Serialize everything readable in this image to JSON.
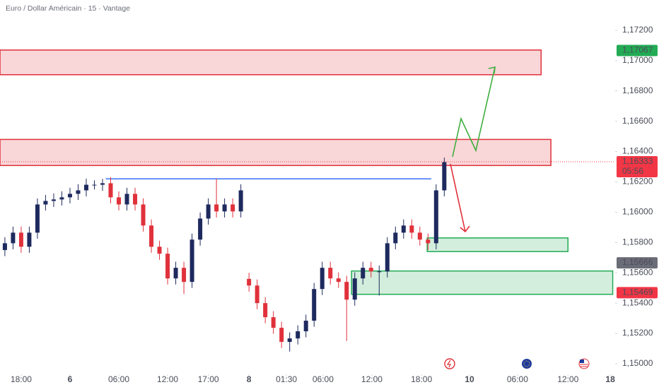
{
  "chart_data": {
    "type": "candlestick",
    "title": "Euro / Dollar Américain · 15 · Vantage",
    "xlim": [
      -2.6,
      73
    ],
    "ylim": [
      1.1493,
      1.174
    ],
    "xticks": [
      {
        "value": 0,
        "label": "18:00"
      },
      {
        "value": 6,
        "label": "6"
      },
      {
        "value": 12,
        "label": "06:00"
      },
      {
        "value": 18,
        "label": "12:00"
      },
      {
        "value": 23,
        "label": "17:00"
      },
      {
        "value": 28,
        "label": "8"
      },
      {
        "value": 32.6,
        "label": "01:30"
      },
      {
        "value": 37.1,
        "label": "06:00"
      },
      {
        "value": 43.1,
        "label": "12:00"
      },
      {
        "value": 49.2,
        "label": "18:00"
      },
      {
        "value": 55.1,
        "label": "10"
      },
      {
        "value": 61,
        "label": "06:00"
      },
      {
        "value": 67.2,
        "label": "12:00"
      },
      {
        "value": 72.4,
        "label": "18"
      }
    ],
    "yticks": [
      {
        "value": 1.172,
        "label": "1,17200"
      },
      {
        "value": 1.17,
        "label": "1,17000"
      },
      {
        "value": 1.168,
        "label": "1,16800"
      },
      {
        "value": 1.166,
        "label": "1,16600"
      },
      {
        "value": 1.164,
        "label": "1,16400"
      },
      {
        "value": 1.162,
        "label": "1,16200"
      },
      {
        "value": 1.16,
        "label": "1,16000"
      },
      {
        "value": 1.158,
        "label": "1,15800"
      },
      {
        "value": 1.156,
        "label": "1,15600"
      },
      {
        "value": 1.154,
        "label": "1,15400"
      },
      {
        "value": 1.152,
        "label": "1,15200"
      },
      {
        "value": 1.15,
        "label": "1,15000"
      }
    ],
    "grid": false,
    "up_color": "#1e2a5e",
    "down_color": "#e0313b",
    "x": [
      -2,
      -1,
      0,
      1,
      2,
      3,
      4,
      5,
      6,
      7,
      8,
      9,
      10,
      11,
      12,
      13,
      14,
      15,
      16,
      17,
      18,
      19,
      20,
      21,
      22,
      23,
      24,
      25,
      26,
      27,
      28,
      29,
      30,
      31,
      32,
      33,
      34,
      35,
      36,
      37,
      38,
      39,
      40,
      41,
      42,
      43,
      44,
      45,
      46,
      47,
      48,
      49,
      50,
      51,
      52
    ],
    "open": [
      1.1575,
      1.15795,
      1.15865,
      1.15772,
      1.15865,
      1.16051,
      1.16074,
      1.16084,
      1.16098,
      1.16121,
      1.16144,
      1.16181,
      1.16181,
      1.16191,
      1.16098,
      1.16051,
      1.16121,
      1.16051,
      1.15912,
      1.15772,
      1.15726,
      1.15563,
      1.15633,
      1.1554,
      1.15819,
      1.15958,
      1.16051,
      1.16005,
      1.16051,
      1.16005,
      1.1556,
      1.15516,
      1.154,
      1.15307,
      1.15237,
      1.15144,
      1.15167,
      1.15214,
      1.15284,
      1.15493,
      1.15633,
      1.15563,
      1.1554,
      1.15423,
      1.15563,
      1.15633,
      1.15609,
      1.15609,
      1.15795,
      1.15865,
      1.15912,
      1.15865,
      1.15819,
      1.15795,
      1.16144
    ],
    "high": [
      1.15835,
      1.15905,
      1.15905,
      1.15905,
      1.16091,
      1.16114,
      1.16124,
      1.16138,
      1.16161,
      1.16184,
      1.16221,
      1.1621,
      1.1622,
      1.16231,
      1.16138,
      1.16161,
      1.16161,
      1.16091,
      1.15952,
      1.15812,
      1.15766,
      1.15673,
      1.15673,
      1.15859,
      1.15998,
      1.16091,
      1.16222,
      1.16091,
      1.16091,
      1.16184,
      1.156,
      1.15556,
      1.1544,
      1.15347,
      1.15277,
      1.15207,
      1.15254,
      1.15324,
      1.15533,
      1.15673,
      1.15673,
      1.15603,
      1.1558,
      1.15603,
      1.15673,
      1.15673,
      1.15649,
      1.15835,
      1.15905,
      1.15952,
      1.15952,
      1.15905,
      1.15859,
      1.16184,
      1.1636
    ],
    "low": [
      1.1571,
      1.15755,
      1.15732,
      1.15732,
      1.15825,
      1.16011,
      1.16034,
      1.16044,
      1.16058,
      1.16081,
      1.16104,
      1.1615,
      1.16141,
      1.16058,
      1.16011,
      1.16011,
      1.16011,
      1.15872,
      1.15732,
      1.15686,
      1.15523,
      1.15523,
      1.1546,
      1.155,
      1.15779,
      1.15918,
      1.15965,
      1.15965,
      1.15965,
      1.15965,
      1.15476,
      1.1536,
      1.15267,
      1.15197,
      1.15104,
      1.1508,
      1.15127,
      1.15174,
      1.15244,
      1.15453,
      1.15523,
      1.155,
      1.1515,
      1.15383,
      1.15523,
      1.15569,
      1.1545,
      1.15569,
      1.15755,
      1.15825,
      1.15825,
      1.15779,
      1.1575,
      1.15755,
      1.16104
    ],
    "close": [
      1.15795,
      1.15865,
      1.15772,
      1.15865,
      1.16051,
      1.16074,
      1.16084,
      1.16098,
      1.16121,
      1.16144,
      1.16181,
      1.16181,
      1.16191,
      1.16098,
      1.16051,
      1.16121,
      1.16051,
      1.15912,
      1.15772,
      1.15726,
      1.15563,
      1.15633,
      1.1554,
      1.15819,
      1.15958,
      1.16051,
      1.16005,
      1.16051,
      1.16005,
      1.16144,
      1.15516,
      1.154,
      1.15307,
      1.15237,
      1.15144,
      1.15167,
      1.15214,
      1.15284,
      1.15493,
      1.15633,
      1.15563,
      1.1554,
      1.15423,
      1.15563,
      1.15633,
      1.15609,
      1.15609,
      1.15795,
      1.15865,
      1.15912,
      1.15865,
      1.15819,
      1.15795,
      1.16144,
      1.1633
    ],
    "zones": [
      {
        "y": [
          1.16907,
          1.1707
        ],
        "x": [
          -2.6,
          63.9
        ],
        "color": "#e0313b"
      },
      {
        "y": [
          1.16308,
          1.1648
        ],
        "x": [
          -2.6,
          65.1
        ],
        "color": "#e0313b"
      },
      {
        "y": [
          1.1574,
          1.1583
        ],
        "x": [
          49.9,
          67.2
        ],
        "color": "#22ab54"
      },
      {
        "y": [
          1.15458,
          1.15612
        ],
        "x": [
          40.6,
          72.7
        ],
        "color": "#22ab54"
      }
    ],
    "levels": [
      {
        "value": 1.1622,
        "x": [
          10.4,
          50.4
        ],
        "color": "#2962ff"
      }
    ],
    "current_price": {
      "value": 1.16333,
      "label": "1,16333",
      "countdown": "05:56",
      "color": "#f23645"
    },
    "price_labels": [
      {
        "value": 1.17067,
        "label": "1,17067",
        "color": "#22ab54"
      },
      {
        "value": 1.15666,
        "label": "1,15666",
        "color": "#6a6d78"
      },
      {
        "value": 1.15469,
        "label": "1,15469",
        "color": "#f23645"
      }
    ]
  }
}
